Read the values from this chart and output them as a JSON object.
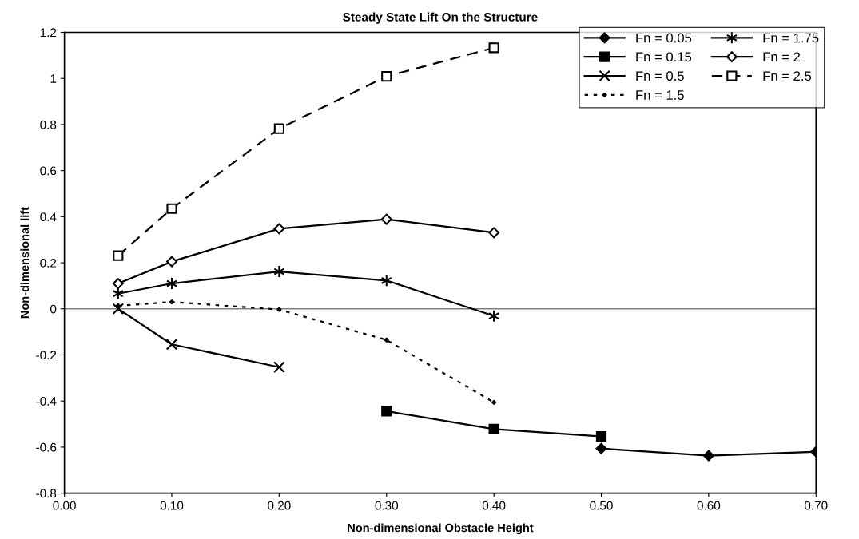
{
  "chart_data": {
    "type": "line",
    "title": "Steady State Lift On the Structure",
    "xlabel": "Non-dimensional Obstacle Height",
    "ylabel": "Non-dimensional lift",
    "xlim": [
      0,
      0.7
    ],
    "xticks": [
      {
        "value": 0,
        "label": "0.00"
      },
      {
        "value": 0.1,
        "label": "0.10"
      },
      {
        "value": 0.2,
        "label": "0.20"
      },
      {
        "value": 0.3,
        "label": "0.30"
      },
      {
        "value": 0.4,
        "label": "0.40"
      },
      {
        "value": 0.5,
        "label": "0.50"
      },
      {
        "value": 0.6,
        "label": "0.60"
      },
      {
        "value": 0.7,
        "label": "0.70"
      }
    ],
    "ylim": [
      -0.8,
      1.2
    ],
    "yticks": [
      -0.8,
      -0.6,
      -0.4,
      -0.2,
      0,
      0.2,
      0.4,
      0.6,
      0.8,
      1,
      1.2
    ],
    "grid": false,
    "legend": "top right",
    "ref_lines": [
      {
        "axis": "y",
        "value": 0,
        "color": "#808080",
        "line_style": "solid"
      }
    ],
    "series": [
      {
        "name": "Fn = 0.05",
        "color": "#000000",
        "marker": "diamond",
        "line_style": "solid",
        "x": [
          0.5,
          0.6,
          0.7
        ],
        "values": [
          -0.606,
          -0.637,
          -0.62
        ]
      },
      {
        "name": "Fn = 0.15",
        "color": "#000000",
        "marker": "square",
        "line_style": "solid",
        "x": [
          0.3,
          0.4,
          0.5
        ],
        "values": [
          -0.444,
          -0.522,
          -0.554
        ]
      },
      {
        "name": "Fn = 0.5",
        "color": "#000000",
        "marker": "cross",
        "line_style": "solid",
        "x": [
          0.05,
          0.1,
          0.2
        ],
        "values": [
          0.0,
          -0.154,
          -0.253
        ]
      },
      {
        "name": "Fn = 1.5",
        "color": "#000000",
        "marker": "square",
        "line_style": "dotted",
        "x": [
          0.05,
          0.1,
          0.2,
          0.3,
          0.4
        ],
        "values": [
          0.013,
          0.03,
          -0.003,
          -0.135,
          -0.406
        ]
      },
      {
        "name": "Fn = 1.75",
        "color": "#000000",
        "marker": "cross",
        "line_style": "solid",
        "x": [
          0.05,
          0.1,
          0.2,
          0.3,
          0.4
        ],
        "values": [
          0.066,
          0.11,
          0.162,
          0.123,
          -0.031
        ]
      },
      {
        "name": "Fn = 2",
        "color": "#000000",
        "marker": "diamond",
        "line_style": "solid",
        "x": [
          0.05,
          0.1,
          0.2,
          0.3,
          0.4
        ],
        "values": [
          0.11,
          0.205,
          0.348,
          0.389,
          0.331
        ]
      },
      {
        "name": "Fn = 2.5",
        "color": "#000000",
        "marker": "square",
        "line_style": "dashed",
        "x": [
          0.05,
          0.1,
          0.2,
          0.3,
          0.4
        ],
        "values": [
          0.231,
          0.435,
          0.782,
          1.009,
          1.133
        ]
      }
    ]
  }
}
